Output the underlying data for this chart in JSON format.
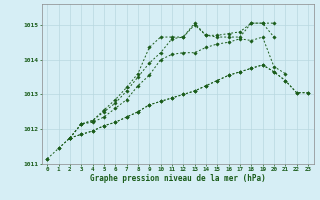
{
  "bg_color": "#d6eef5",
  "plot_bg": "#d6eef5",
  "line_color": "#1a5c1a",
  "grid_color": "#b8d8e0",
  "xlabel": "Graphe pression niveau de la mer (hPa)",
  "xlim": [
    -0.5,
    23.5
  ],
  "ylim": [
    1011.0,
    1015.6
  ],
  "yticks": [
    1011,
    1012,
    1013,
    1014,
    1015
  ],
  "xticks": [
    0,
    1,
    2,
    3,
    4,
    5,
    6,
    7,
    8,
    9,
    10,
    11,
    12,
    13,
    14,
    15,
    16,
    17,
    18,
    19,
    20,
    21,
    22,
    23
  ],
  "series": [
    {
      "x": [
        0,
        1,
        2,
        3,
        4,
        5,
        6,
        7,
        8,
        9,
        10,
        11,
        12,
        13,
        14,
        15,
        16,
        17,
        18,
        19,
        20,
        21,
        22,
        23
      ],
      "y": [
        1011.15,
        null,
        null,
        null,
        null,
        null,
        null,
        null,
        null,
        null,
        null,
        null,
        null,
        null,
        null,
        null,
        null,
        null,
        null,
        null,
        null,
        null,
        null,
        null
      ]
    },
    {
      "x": [
        0,
        1,
        2,
        3,
        4,
        5,
        6,
        7,
        8,
        9,
        10,
        11,
        12,
        13,
        14,
        15,
        16,
        17,
        18,
        19,
        20,
        21,
        22,
        23
      ],
      "y": [
        null,
        1011.45,
        1011.75,
        1011.85,
        1011.95,
        1012.1,
        1012.2,
        1012.35,
        1012.5,
        1012.7,
        1012.8,
        1012.9,
        1013.0,
        1013.1,
        1013.25,
        1013.4,
        1013.55,
        1013.65,
        1013.75,
        1013.85,
        1013.65,
        1013.4,
        1013.05,
        1013.05
      ]
    },
    {
      "x": [
        2,
        3,
        4,
        5,
        6,
        7,
        8,
        9,
        10,
        11,
        12,
        13,
        14,
        15,
        16,
        17,
        18,
        19,
        20,
        21
      ],
      "y": [
        1011.75,
        1012.15,
        1012.2,
        1012.35,
        1012.6,
        1012.85,
        1013.25,
        1013.55,
        1014.0,
        1014.15,
        1014.2,
        1014.2,
        1014.35,
        1014.45,
        1014.5,
        1014.6,
        1014.55,
        1014.65,
        1013.8,
        1013.6
      ]
    },
    {
      "x": [
        2,
        3,
        4,
        5,
        6,
        7,
        8,
        9,
        10,
        11,
        12,
        13,
        14,
        15,
        16,
        17,
        18,
        19,
        20
      ],
      "y": [
        1011.75,
        1012.15,
        1012.25,
        1012.5,
        1012.75,
        1013.1,
        1013.5,
        1013.9,
        1014.2,
        1014.6,
        1014.65,
        1015.0,
        1014.7,
        1014.65,
        1014.65,
        1014.65,
        1015.05,
        1015.05,
        1014.65
      ]
    }
  ],
  "series_top": {
    "x": [
      2,
      3,
      4,
      5,
      6,
      7,
      8,
      9,
      10,
      11,
      12,
      13,
      14,
      15,
      16,
      17,
      18,
      19,
      20
    ],
    "y": [
      1011.75,
      1012.15,
      1012.25,
      1012.55,
      1012.85,
      1013.2,
      1013.6,
      1014.35,
      1014.65,
      1014.65,
      1014.65,
      1015.05,
      1014.7,
      1014.7,
      1014.75,
      1014.8,
      1015.05,
      1015.05,
      1015.05
    ]
  }
}
